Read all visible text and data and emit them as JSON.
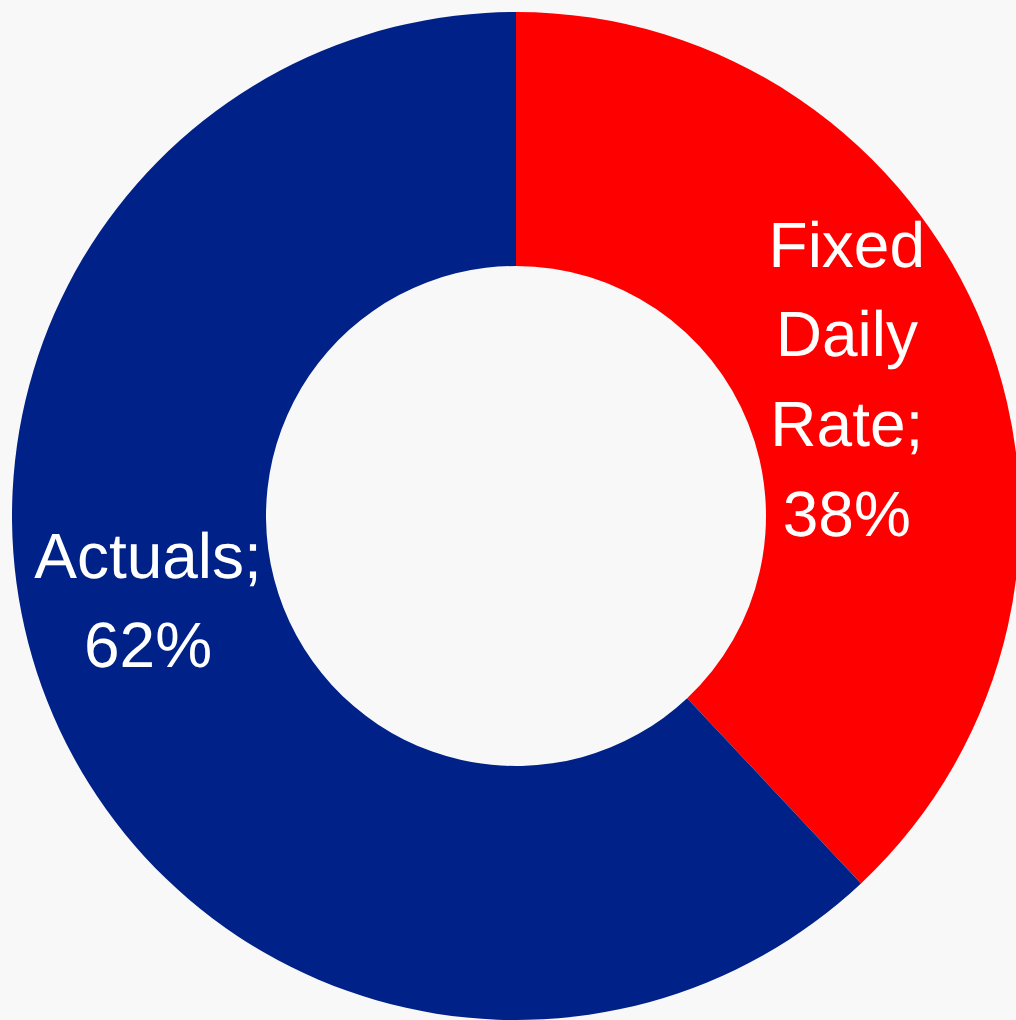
{
  "chart_data": {
    "type": "donut",
    "categories": [
      "Fixed Daily Rate",
      "Actuals"
    ],
    "values": [
      38,
      62
    ],
    "value_labels": [
      "; 38%",
      "; 62%"
    ],
    "colors": [
      "#ff0000",
      "#002288"
    ]
  }
}
